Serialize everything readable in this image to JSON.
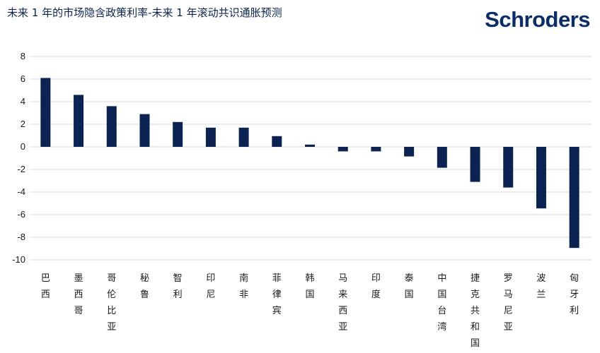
{
  "title": "未来 1 年的市场隐含政策利率-未来 1 年滚动共识通胀预测",
  "logo_text": "Schroders",
  "chart_data": {
    "type": "bar",
    "title": "未来 1 年的市场隐含政策利率-未来 1 年滚动共识通胀预测",
    "xlabel": "",
    "ylabel": "",
    "ylim": [
      -10,
      8
    ],
    "yticks": [
      8,
      6,
      4,
      2,
      0,
      -2,
      -4,
      -6,
      -8,
      -10
    ],
    "grid": true,
    "bar_color": "#0a2352",
    "categories": [
      "巴西",
      "墨西哥",
      "哥伦比亚",
      "秘鲁",
      "智利",
      "印尼",
      "南非",
      "菲律宾",
      "韩国",
      "马来西亚",
      "印度",
      "泰国",
      "中国台湾",
      "捷克共和国",
      "罗马尼亚",
      "波兰",
      "匈牙利"
    ],
    "values": [
      6.1,
      4.6,
      3.6,
      2.9,
      2.2,
      1.7,
      1.7,
      0.95,
      0.2,
      -0.4,
      -0.4,
      -0.85,
      -1.85,
      -3.1,
      -3.6,
      -5.45,
      -8.95
    ]
  }
}
